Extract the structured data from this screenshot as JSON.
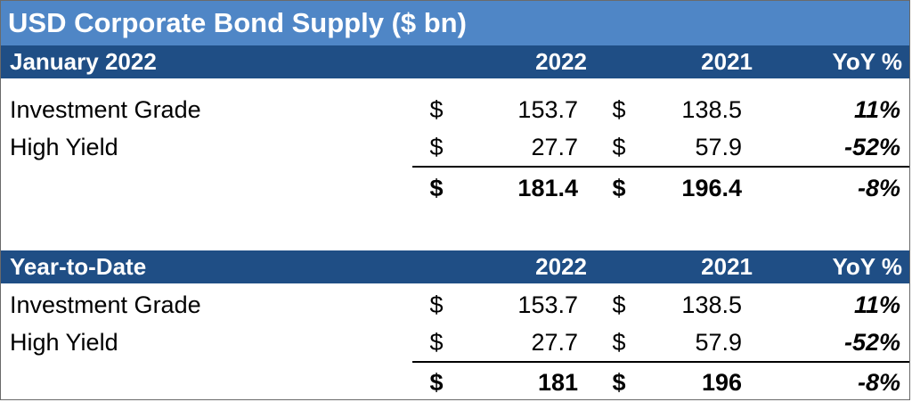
{
  "title": "USD Corporate Bond Supply ($ bn)",
  "sections": [
    {
      "header": {
        "label": "January 2022",
        "col1": "2022",
        "col2": "2021",
        "col3": "YoY %"
      },
      "rows": [
        {
          "label": "Investment Grade",
          "cur1": "$",
          "v2022": "153.7",
          "cur2": "$",
          "v2021": "138.5",
          "yoy": "11%"
        },
        {
          "label": "High Yield",
          "cur1": "$",
          "v2022": "27.7",
          "cur2": "$",
          "v2021": "57.9",
          "yoy": "-52%"
        }
      ],
      "total": {
        "cur1": "$",
        "v2022": "181.4",
        "cur2": "$",
        "v2021": "196.4",
        "yoy": "-8%"
      }
    },
    {
      "header": {
        "label": "Year-to-Date",
        "col1": "2022",
        "col2": "2021",
        "col3": "YoY %"
      },
      "rows": [
        {
          "label": "Investment Grade",
          "cur1": "$",
          "v2022": "153.7",
          "cur2": "$",
          "v2021": "138.5",
          "yoy": "11%"
        },
        {
          "label": "High Yield",
          "cur1": "$",
          "v2022": "27.7",
          "cur2": "$",
          "v2021": "57.9",
          "yoy": "-52%"
        }
      ],
      "total": {
        "cur1": "$",
        "v2022": "181",
        "cur2": "$",
        "v2021": "196",
        "yoy": "-8%"
      }
    }
  ],
  "colors": {
    "title_bg": "#4f86c6",
    "header_bg": "#1f4e85",
    "header_text": "#ffffff"
  }
}
